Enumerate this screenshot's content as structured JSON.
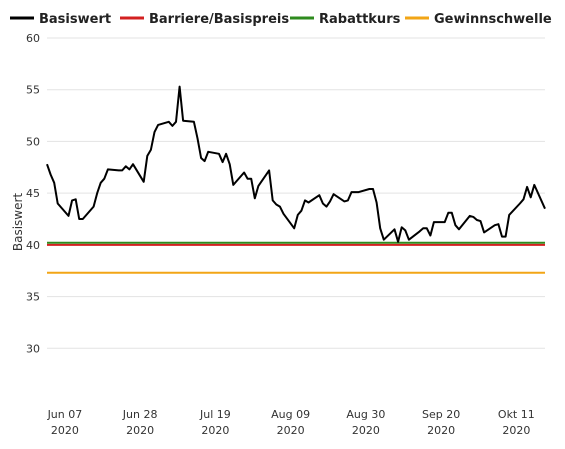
{
  "chart_data": {
    "type": "line",
    "ylabel": "Basiswert",
    "ylim": [
      25,
      60
    ],
    "y_ticks": [
      30,
      35,
      40,
      45,
      50,
      55,
      60
    ],
    "x_range": [
      "2020-06-02",
      "2020-10-19"
    ],
    "x_ticks": [
      {
        "date": "2020-06-07",
        "line1": "Jun 07",
        "line2": "2020"
      },
      {
        "date": "2020-06-28",
        "line1": "Jun 28",
        "line2": "2020"
      },
      {
        "date": "2020-07-19",
        "line1": "Jul 19",
        "line2": "2020"
      },
      {
        "date": "2020-08-09",
        "line1": "Aug 09",
        "line2": "2020"
      },
      {
        "date": "2020-08-30",
        "line1": "Aug 30",
        "line2": "2020"
      },
      {
        "date": "2020-09-20",
        "line1": "Sep 20",
        "line2": "2020"
      },
      {
        "date": "2020-10-11",
        "line1": "Okt 11",
        "line2": "2020"
      }
    ],
    "grid": "horizontal",
    "legend_position": "top",
    "series": [
      {
        "name": "Basiswert",
        "color": "#000000",
        "points": [
          [
            "2020-06-02",
            47.8
          ],
          [
            "2020-06-03",
            46.8
          ],
          [
            "2020-06-04",
            46.0
          ],
          [
            "2020-06-05",
            44.0
          ],
          [
            "2020-06-08",
            42.8
          ],
          [
            "2020-06-09",
            44.3
          ],
          [
            "2020-06-10",
            44.4
          ],
          [
            "2020-06-11",
            42.5
          ],
          [
            "2020-06-12",
            42.5
          ],
          [
            "2020-06-15",
            43.7
          ],
          [
            "2020-06-16",
            45.0
          ],
          [
            "2020-06-17",
            46.0
          ],
          [
            "2020-06-18",
            46.4
          ],
          [
            "2020-06-19",
            47.3
          ],
          [
            "2020-06-22",
            47.2
          ],
          [
            "2020-06-23",
            47.2
          ],
          [
            "2020-06-24",
            47.6
          ],
          [
            "2020-06-25",
            47.3
          ],
          [
            "2020-06-26",
            47.8
          ],
          [
            "2020-06-29",
            46.1
          ],
          [
            "2020-06-30",
            48.6
          ],
          [
            "2020-07-01",
            49.2
          ],
          [
            "2020-07-02",
            50.9
          ],
          [
            "2020-07-03",
            51.6
          ],
          [
            "2020-07-06",
            51.9
          ],
          [
            "2020-07-07",
            51.5
          ],
          [
            "2020-07-08",
            51.9
          ],
          [
            "2020-07-09",
            55.3
          ],
          [
            "2020-07-10",
            52.0
          ],
          [
            "2020-07-13",
            51.9
          ],
          [
            "2020-07-14",
            50.3
          ],
          [
            "2020-07-15",
            48.4
          ],
          [
            "2020-07-16",
            48.1
          ],
          [
            "2020-07-17",
            49.0
          ],
          [
            "2020-07-20",
            48.8
          ],
          [
            "2020-07-21",
            48.0
          ],
          [
            "2020-07-22",
            48.8
          ],
          [
            "2020-07-23",
            47.8
          ],
          [
            "2020-07-24",
            45.8
          ],
          [
            "2020-07-27",
            47.0
          ],
          [
            "2020-07-28",
            46.4
          ],
          [
            "2020-07-29",
            46.4
          ],
          [
            "2020-07-30",
            44.5
          ],
          [
            "2020-07-31",
            45.7
          ],
          [
            "2020-08-03",
            47.2
          ],
          [
            "2020-08-04",
            44.3
          ],
          [
            "2020-08-05",
            43.9
          ],
          [
            "2020-08-06",
            43.7
          ],
          [
            "2020-08-07",
            43.0
          ],
          [
            "2020-08-10",
            41.6
          ],
          [
            "2020-08-11",
            42.9
          ],
          [
            "2020-08-12",
            43.3
          ],
          [
            "2020-08-13",
            44.3
          ],
          [
            "2020-08-14",
            44.1
          ],
          [
            "2020-08-17",
            44.8
          ],
          [
            "2020-08-18",
            44.0
          ],
          [
            "2020-08-19",
            43.7
          ],
          [
            "2020-08-20",
            44.2
          ],
          [
            "2020-08-21",
            44.9
          ],
          [
            "2020-08-24",
            44.2
          ],
          [
            "2020-08-25",
            44.3
          ],
          [
            "2020-08-26",
            45.1
          ],
          [
            "2020-08-27",
            45.1
          ],
          [
            "2020-08-28",
            45.1
          ],
          [
            "2020-08-31",
            45.4
          ],
          [
            "2020-09-01",
            45.4
          ],
          [
            "2020-09-02",
            44.1
          ],
          [
            "2020-09-03",
            41.6
          ],
          [
            "2020-09-04",
            40.5
          ],
          [
            "2020-09-07",
            41.5
          ],
          [
            "2020-09-08",
            40.3
          ],
          [
            "2020-09-09",
            41.7
          ],
          [
            "2020-09-10",
            41.4
          ],
          [
            "2020-09-11",
            40.5
          ],
          [
            "2020-09-14",
            41.3
          ],
          [
            "2020-09-15",
            41.6
          ],
          [
            "2020-09-16",
            41.6
          ],
          [
            "2020-09-17",
            40.9
          ],
          [
            "2020-09-18",
            42.2
          ],
          [
            "2020-09-21",
            42.2
          ],
          [
            "2020-09-22",
            43.1
          ],
          [
            "2020-09-23",
            43.1
          ],
          [
            "2020-09-24",
            41.9
          ],
          [
            "2020-09-25",
            41.5
          ],
          [
            "2020-09-28",
            42.8
          ],
          [
            "2020-09-29",
            42.7
          ],
          [
            "2020-09-30",
            42.4
          ],
          [
            "2020-10-01",
            42.3
          ],
          [
            "2020-10-02",
            41.2
          ],
          [
            "2020-10-05",
            41.9
          ],
          [
            "2020-10-06",
            42.0
          ],
          [
            "2020-10-07",
            40.8
          ],
          [
            "2020-10-08",
            40.8
          ],
          [
            "2020-10-09",
            42.9
          ],
          [
            "2020-10-12",
            44.0
          ],
          [
            "2020-10-13",
            44.4
          ],
          [
            "2020-10-14",
            45.6
          ],
          [
            "2020-10-15",
            44.6
          ],
          [
            "2020-10-16",
            45.8
          ],
          [
            "2020-10-19",
            43.5
          ]
        ]
      },
      {
        "name": "Barriere/Basispreis",
        "color": "#d32020",
        "value": 40.0
      },
      {
        "name": "Rabattkurs",
        "color": "#2e8b1e",
        "value": 40.2
      },
      {
        "name": "Gewinnschwelle",
        "color": "#f2a516",
        "value": 37.3
      }
    ]
  }
}
